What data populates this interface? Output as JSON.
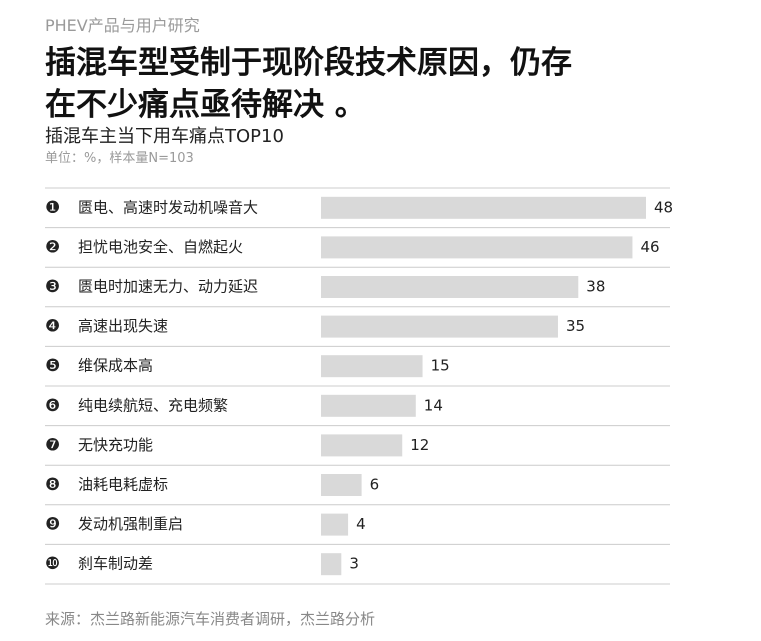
{
  "header": "PHEV产品与用户研究",
  "chart_data": {
    "type": "bar",
    "orientation": "horizontal",
    "title": "插混车型受制于现阶段技术原因，仍存在不少痛点亟待解决 。",
    "subtitle": "插混车主当下用车痛点TOP10",
    "note": "单位：%，样本量N=103",
    "ranks": [
      "❶",
      "❷",
      "❸",
      "❹",
      "❺",
      "❻",
      "❼",
      "❽",
      "❾",
      "❿"
    ],
    "categories": [
      "匮电、高速时发动机噪音大",
      "担忧电池安全、自燃起火",
      "匮电时加速无力、动力延迟",
      "高速出现失速",
      "维保成本高",
      "纯电续航短、充电频繁",
      "无快充功能",
      "油耗电耗虚标",
      "发动机强制重启",
      "刹车制动差"
    ],
    "values": [
      48,
      46,
      38,
      35,
      15,
      14,
      12,
      6,
      4,
      3
    ],
    "color": "#d9d9d9",
    "xlim": [
      0,
      48
    ]
  },
  "source": "来源：杰兰路新能源汽车消费者调研，杰兰路分析"
}
